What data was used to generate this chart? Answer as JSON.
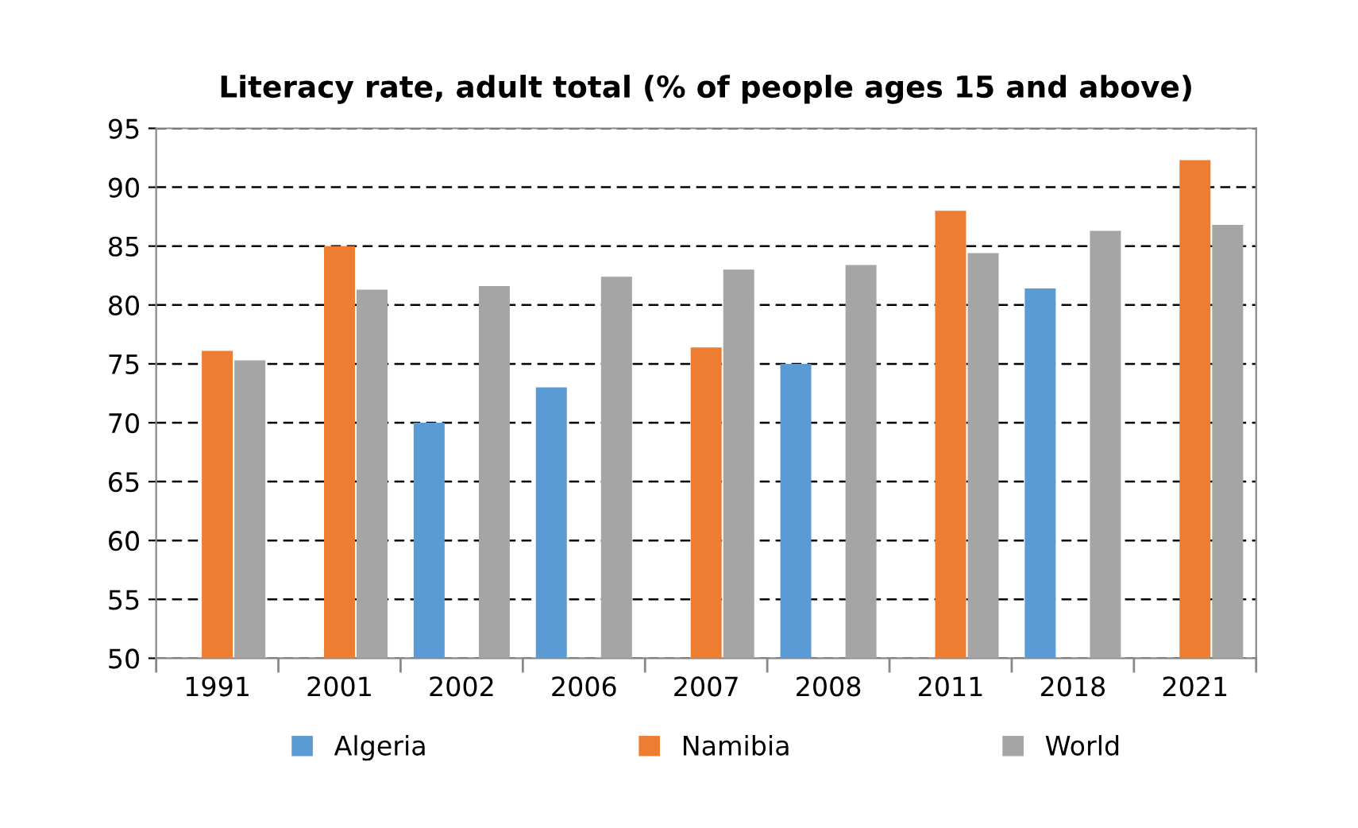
{
  "chart_data": {
    "type": "bar",
    "title": "Literacy rate, adult total (% of people ages 15 and above)",
    "categories": [
      "1991",
      "2001",
      "2002",
      "2006",
      "2007",
      "2008",
      "2011",
      "2018",
      "2021"
    ],
    "series": [
      {
        "name": "Algeria",
        "color": "#5b9bd5",
        "values": [
          null,
          null,
          70,
          73,
          null,
          75,
          null,
          81.4,
          null
        ]
      },
      {
        "name": "Namibia",
        "color": "#ed7d31",
        "values": [
          76.1,
          85,
          null,
          null,
          76.4,
          null,
          88,
          null,
          92.3
        ]
      },
      {
        "name": "World",
        "color": "#a5a5a5",
        "values": [
          75.3,
          81.3,
          81.6,
          82.4,
          83.0,
          83.4,
          84.4,
          86.3,
          86.8
        ]
      }
    ],
    "ylim": [
      50,
      95
    ],
    "yticks": [
      50,
      55,
      60,
      65,
      70,
      75,
      80,
      85,
      90,
      95
    ],
    "grid": "y",
    "legend": "bottom"
  }
}
